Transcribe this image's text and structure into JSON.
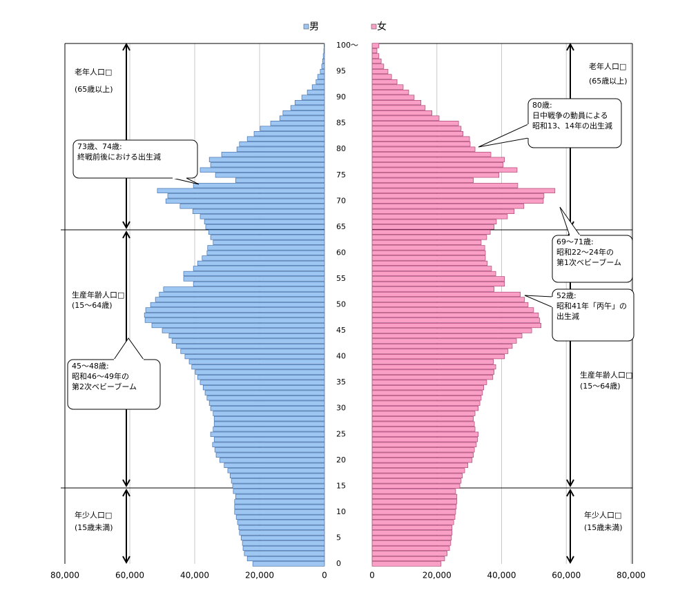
{
  "chart_data": {
    "type": "pyramid",
    "categories": [
      "0",
      null,
      null,
      null,
      null,
      "5",
      null,
      null,
      null,
      null,
      "10",
      null,
      null,
      null,
      null,
      "15",
      null,
      null,
      null,
      null,
      "20",
      null,
      null,
      null,
      null,
      "25",
      null,
      null,
      null,
      null,
      "30",
      null,
      null,
      null,
      null,
      "35",
      null,
      null,
      null,
      null,
      "40",
      null,
      null,
      null,
      null,
      "45",
      null,
      null,
      null,
      null,
      "50",
      null,
      null,
      null,
      null,
      "55",
      null,
      null,
      null,
      null,
      "60",
      null,
      null,
      null,
      null,
      "65",
      null,
      null,
      null,
      null,
      "70",
      null,
      null,
      null,
      null,
      "75",
      null,
      null,
      null,
      null,
      "80",
      null,
      null,
      null,
      null,
      "85",
      null,
      null,
      null,
      null,
      "90",
      null,
      null,
      null,
      null,
      "95",
      null,
      null,
      null,
      null,
      "100～"
    ],
    "series": [
      {
        "name": "男",
        "color": "#9ec6f2",
        "values": [
          22100,
          23800,
          24700,
          25100,
          25300,
          25700,
          26200,
          26400,
          26800,
          27200,
          27700,
          27700,
          27700,
          27400,
          28100,
          28300,
          28700,
          29100,
          29800,
          30900,
          32300,
          33400,
          33800,
          34500,
          34000,
          35100,
          34300,
          34000,
          34000,
          34300,
          35100,
          35500,
          36200,
          36800,
          37400,
          38300,
          39100,
          39800,
          40900,
          41700,
          43000,
          44300,
          45700,
          47000,
          47900,
          50000,
          53200,
          55300,
          55500,
          55100,
          53600,
          52100,
          50900,
          49600,
          40400,
          43400,
          43400,
          40400,
          39100,
          37700,
          36200,
          36000,
          34300,
          35100,
          35700,
          36600,
          37000,
          38300,
          40600,
          44500,
          48900,
          48300,
          51500,
          40400,
          27400,
          33600,
          38300,
          35100,
          35500,
          31700,
          27000,
          26200,
          23800,
          21700,
          19800,
          16600,
          13800,
          12800,
          10400,
          9100,
          7000,
          5300,
          3800,
          2600,
          2100,
          1300,
          850,
          600,
          400,
          200,
          150
        ]
      },
      {
        "name": "女",
        "color": "#fa9fc6",
        "values": [
          21300,
          22400,
          23200,
          23900,
          24300,
          24500,
          24700,
          24700,
          25200,
          25600,
          25800,
          26000,
          26200,
          26200,
          25800,
          27100,
          27500,
          27900,
          28600,
          29600,
          30900,
          31300,
          31600,
          32200,
          32600,
          32800,
          31800,
          31600,
          31300,
          31800,
          32800,
          33300,
          33700,
          34100,
          34500,
          35400,
          37300,
          37700,
          38200,
          37500,
          40900,
          42000,
          43300,
          44600,
          46300,
          49300,
          52200,
          51800,
          51400,
          49900,
          48200,
          47100,
          45800,
          37700,
          40900,
          40900,
          38200,
          36900,
          35600,
          35000,
          35000,
          34800,
          33700,
          35400,
          36500,
          37700,
          38400,
          41800,
          43900,
          46900,
          52900,
          53100,
          56500,
          45000,
          31300,
          39200,
          44800,
          40500,
          40900,
          36700,
          31800,
          30300,
          30100,
          28100,
          27500,
          26700,
          20700,
          18500,
          16400,
          15100,
          13000,
          11300,
          9600,
          7700,
          6000,
          4900,
          3600,
          2800,
          2100,
          1500,
          2100
        ]
      }
    ],
    "xlim": [
      0,
      80000
    ],
    "xticks": [
      0,
      {
        "value": 20000,
        "label": "20,000"
      },
      {
        "value": 40000,
        "label": "40,000"
      },
      {
        "value": 60000,
        "label": "60,000"
      },
      {
        "value": 80000,
        "label": "80,000"
      }
    ],
    "grid": true,
    "groups": [
      {
        "name": "老年人口□",
        "range": "(65歳以上)"
      },
      {
        "name": "生産年齢人口□",
        "range": "(15～64歳)"
      },
      {
        "name": "年少人口□",
        "range": "(15歳未満)"
      }
    ],
    "annotations": [
      {
        "lines": [
          "73歳、74歳:",
          "終戦前後における出生減"
        ]
      },
      {
        "lines": [
          "45～48歳:",
          "昭和46～49年の",
          "第2次ベビーブーム"
        ]
      },
      {
        "lines": [
          "80歳:",
          "日中戦争の動員による",
          "昭和13、14年の出生減"
        ]
      },
      {
        "lines": [
          "69～71歳:",
          "昭和22～24年の",
          "第1次ベビーブーム"
        ]
      },
      {
        "lines": [
          "52歳:",
          "昭和41年「丙午」の",
          "出生減"
        ]
      }
    ]
  }
}
